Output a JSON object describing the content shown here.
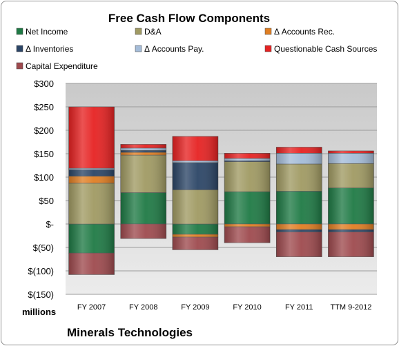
{
  "chart_data": {
    "type": "bar",
    "stacked": true,
    "title": "Free Cash Flow Components",
    "ylabel": "millions",
    "footer": "Minerals Technologies",
    "categories": [
      "FY 2007",
      "FY 2008",
      "FY 2009",
      "FY 2010",
      "FY 2011",
      "TTM 9-2012"
    ],
    "ylim": [
      -150,
      300
    ],
    "yticks": [
      300,
      250,
      200,
      150,
      100,
      50,
      0,
      -50,
      -100,
      -150
    ],
    "ytick_labels": [
      "$300",
      "$250",
      "$200",
      "$150",
      "$100",
      "$50",
      "$-",
      "$(50)",
      "$(100)",
      "$(150)"
    ],
    "grid": true,
    "legend_position": "top",
    "series": [
      {
        "name": "Net Income",
        "color": "#1f7a45",
        "values": [
          -62,
          67,
          -22,
          69,
          70,
          77
        ]
      },
      {
        "name": "D&A",
        "color": "#a09a63",
        "values": [
          87,
          80,
          73,
          64,
          58,
          52
        ]
      },
      {
        "name": "Δ Accounts Rec.",
        "color": "#e07e22",
        "values": [
          15,
          6,
          -6,
          -6,
          -12,
          -12
        ]
      },
      {
        "name": "Δ Inventories",
        "color": "#2b4566",
        "values": [
          14,
          4,
          58,
          2,
          -5,
          -5
        ]
      },
      {
        "name": "Δ Accounts Pay.",
        "color": "#a4bcd8",
        "values": [
          3,
          5,
          4,
          5,
          23,
          22
        ]
      },
      {
        "name": "Questionable Cash Sources",
        "color": "#e62222",
        "values": [
          131,
          8,
          52,
          11,
          13,
          5
        ]
      },
      {
        "name": "Capital Expenditure",
        "color": "#9e4a4e",
        "values": [
          -46,
          -31,
          -27,
          -34,
          -53,
          -53
        ]
      }
    ]
  }
}
